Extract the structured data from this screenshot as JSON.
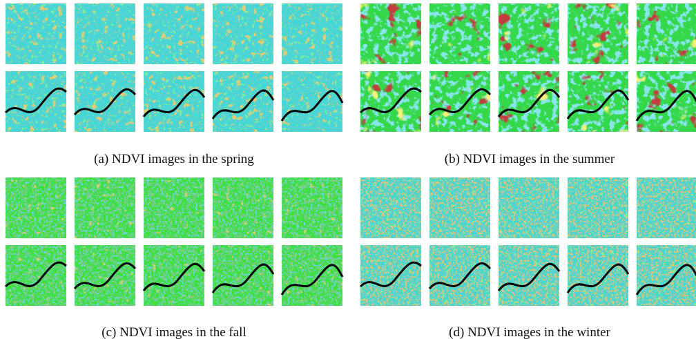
{
  "panels": [
    {
      "caption": "(a) NDVI images in the spring"
    },
    {
      "caption": "(b) NDVI images in the summer"
    },
    {
      "caption": "(c) NDVI images in the fall"
    },
    {
      "caption": "(d) NDVI images in the winter"
    }
  ]
}
